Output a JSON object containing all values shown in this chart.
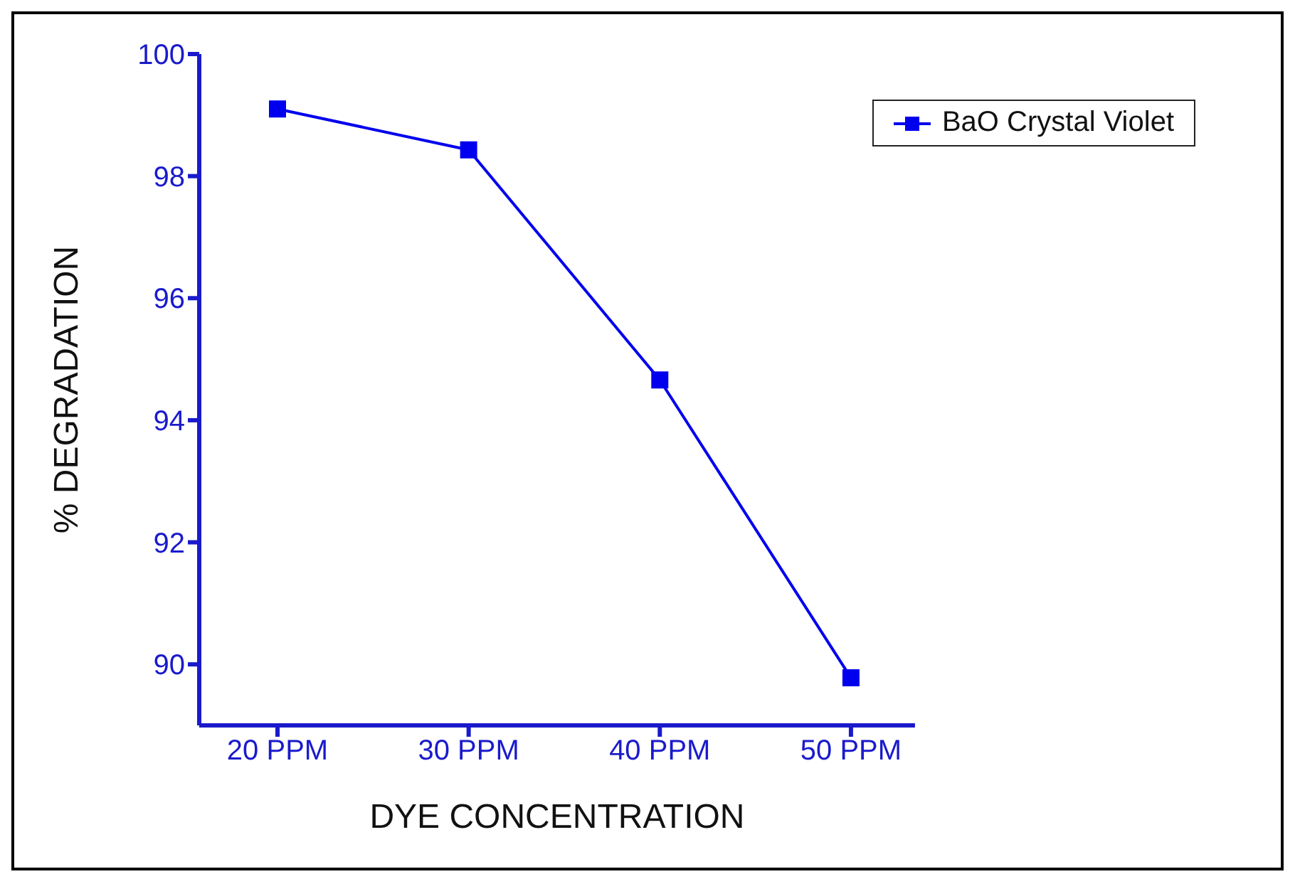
{
  "chart_data": {
    "type": "line",
    "xlabel": "DYE CONCENTRATION",
    "ylabel": "% DEGRADATION",
    "categories": [
      "20 PPM",
      "30 PPM",
      "40 PPM",
      "50 PPM"
    ],
    "series": [
      {
        "name": "BaO Crystal Violet",
        "color": "#0000ee",
        "values": [
          99.1,
          98.43,
          94.66,
          89.78
        ]
      }
    ],
    "ylim": [
      89,
      100
    ],
    "yticks": [
      90,
      92,
      94,
      96,
      98,
      100
    ],
    "marker": "square",
    "line_style": "solid",
    "legend": "top right",
    "grid": false
  }
}
